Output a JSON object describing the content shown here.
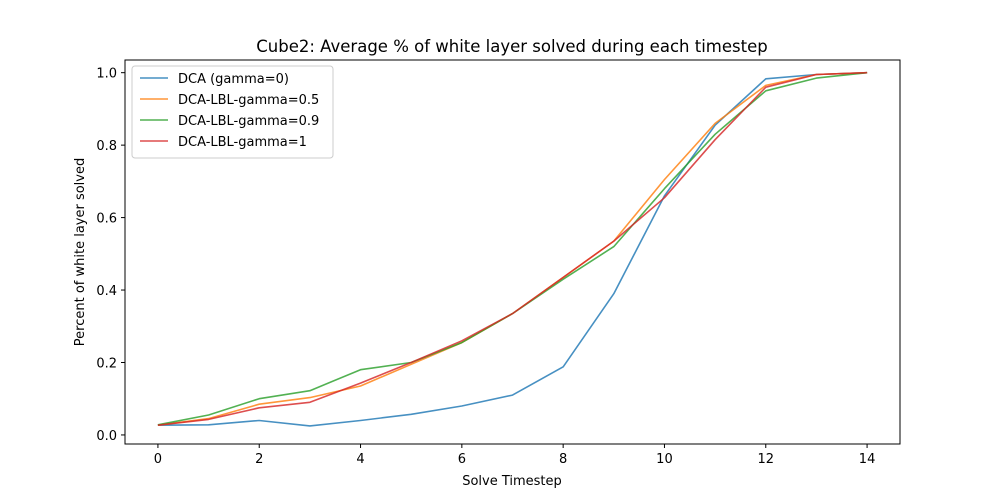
{
  "chart_data": {
    "type": "line",
    "title": "Cube2: Average % of white layer solved during each timestep",
    "xlabel": "Solve Timestep",
    "ylabel": "Percent of white layer solved",
    "xlim": [
      -0.65,
      14.65
    ],
    "ylim": [
      -0.025,
      1.035
    ],
    "xticks": [
      0,
      2,
      4,
      6,
      8,
      10,
      12,
      14
    ],
    "yticks": [
      0.0,
      0.2,
      0.4,
      0.6,
      0.8,
      1.0
    ],
    "ytick_labels": [
      "0.0",
      "0.2",
      "0.4",
      "0.6",
      "0.8",
      "1.0"
    ],
    "grid": false,
    "legend_position": "top-left",
    "x": [
      0,
      1,
      2,
      3,
      4,
      5,
      6,
      7,
      8,
      9,
      10,
      11,
      12,
      13,
      14
    ],
    "series": [
      {
        "name": "DCA (gamma=0)",
        "color": "#1f77b4",
        "values": [
          0.027,
          0.028,
          0.04,
          0.025,
          0.04,
          0.057,
          0.08,
          0.11,
          0.188,
          0.39,
          0.66,
          0.855,
          0.983,
          0.995,
          1.0
        ]
      },
      {
        "name": "DCA-LBL-gamma=0.5",
        "color": "#ff7f0e",
        "values": [
          0.027,
          0.045,
          0.085,
          0.103,
          0.135,
          0.195,
          0.255,
          0.335,
          0.435,
          0.535,
          0.705,
          0.86,
          0.965,
          0.995,
          1.0
        ]
      },
      {
        "name": "DCA-LBL-gamma=0.9",
        "color": "#2ca02c",
        "values": [
          0.028,
          0.055,
          0.1,
          0.122,
          0.18,
          0.2,
          0.255,
          0.335,
          0.43,
          0.52,
          0.68,
          0.83,
          0.95,
          0.985,
          1.0
        ]
      },
      {
        "name": "DCA-LBL-gamma=1",
        "color": "#d62728",
        "values": [
          0.027,
          0.043,
          0.075,
          0.09,
          0.143,
          0.2,
          0.26,
          0.335,
          0.435,
          0.535,
          0.655,
          0.815,
          0.96,
          0.995,
          1.0
        ]
      }
    ]
  }
}
